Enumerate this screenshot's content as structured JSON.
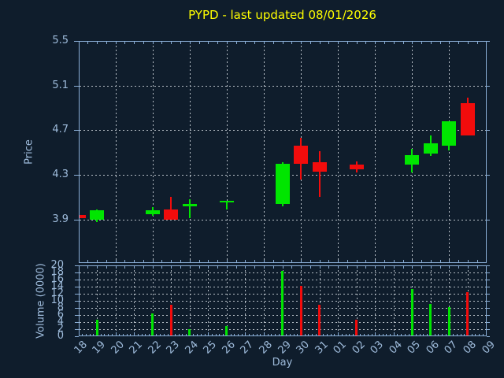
{
  "colors": {
    "background": "#0f1d2c",
    "axis": "#8aaed6",
    "tick_label": "#9fbcdc",
    "grid": "#b4bcc4",
    "title": "#ffff00",
    "up": "#00e600",
    "down": "#f20c0c"
  },
  "chart_data": {
    "type": "candlestick",
    "title": "PYPD - last updated 08/01/2026",
    "xlabel": "Day",
    "price_ylabel": "Price",
    "volume_ylabel": "Volume (0000)",
    "price_ylim": [
      3.51,
      5.5
    ],
    "volume_ylim": [
      0,
      20
    ],
    "price_yticks": [
      5.5,
      5.1,
      4.7,
      4.3,
      3.9
    ],
    "volume_yticks": [
      0,
      2,
      4,
      6,
      8,
      10,
      12,
      14,
      16,
      18,
      20
    ],
    "x_categories": [
      "18",
      "19",
      "20",
      "21",
      "22",
      "23",
      "24",
      "25",
      "26",
      "27",
      "28",
      "29",
      "30",
      "31",
      "01",
      "02",
      "03",
      "04",
      "05",
      "06",
      "07",
      "08",
      "09"
    ],
    "price_grid_indices": [
      2,
      4,
      6,
      8,
      10,
      12,
      14,
      16,
      18,
      20
    ],
    "legend": "none",
    "grid": "dashed",
    "candles": [
      {
        "day": "18",
        "open": 3.94,
        "high": 3.94,
        "low": 3.91,
        "close": 3.91,
        "volume": 0
      },
      {
        "day": "19",
        "open": 3.9,
        "high": 3.99,
        "low": 3.88,
        "close": 3.98,
        "volume": 4.6
      },
      {
        "day": "22",
        "open": 3.95,
        "high": 4.01,
        "low": 3.93,
        "close": 3.98,
        "volume": 6.5
      },
      {
        "day": "23",
        "open": 3.99,
        "high": 4.1,
        "low": 3.9,
        "close": 3.9,
        "volume": 8.9
      },
      {
        "day": "24",
        "open": 4.02,
        "high": 4.08,
        "low": 3.91,
        "close": 4.04,
        "volume": 2.1
      },
      {
        "day": "26",
        "open": 4.06,
        "high": 4.07,
        "low": 3.99,
        "close": 4.07,
        "volume": 2.8
      },
      {
        "day": "29",
        "open": 4.04,
        "high": 4.41,
        "low": 4.02,
        "close": 4.4,
        "volume": 18.5
      },
      {
        "day": "30",
        "open": 4.56,
        "high": 4.63,
        "low": 4.26,
        "close": 4.4,
        "volume": 14.3
      },
      {
        "day": "31",
        "open": 4.41,
        "high": 4.51,
        "low": 4.1,
        "close": 4.33,
        "volume": 8.9
      },
      {
        "day": "02",
        "open": 4.39,
        "high": 4.42,
        "low": 4.32,
        "close": 4.35,
        "volume": 4.7
      },
      {
        "day": "05",
        "open": 4.39,
        "high": 4.53,
        "low": 4.32,
        "close": 4.48,
        "volume": 13.3
      },
      {
        "day": "06",
        "open": 4.49,
        "high": 4.65,
        "low": 4.47,
        "close": 4.58,
        "volume": 9.1
      },
      {
        "day": "07",
        "open": 4.56,
        "high": 4.78,
        "low": 4.52,
        "close": 4.78,
        "volume": 8.2
      },
      {
        "day": "08",
        "open": 4.94,
        "high": 4.99,
        "low": 4.65,
        "close": 4.65,
        "volume": 12.4
      }
    ]
  }
}
